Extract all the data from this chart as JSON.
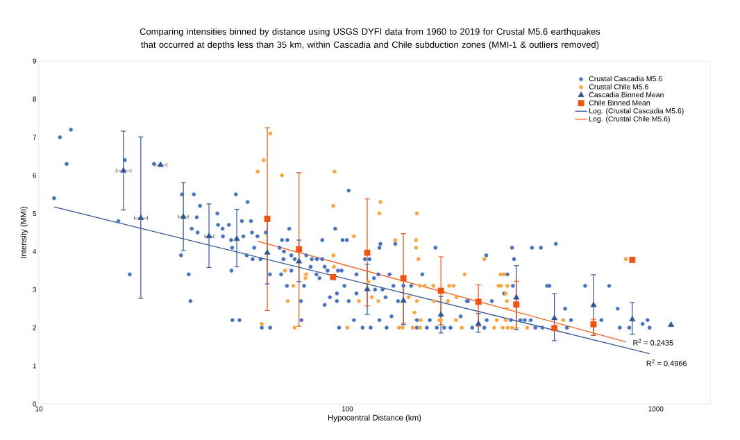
{
  "chart_data": {
    "type": "scatter",
    "title": "Comparing intensities binned by distance using USGS DYFI data from 1960 to 2019 for Crustal M5.6 earthquakes that occurred at depths less than 35 km, within Cascadia and Chile subduction zones (MMI-1 & outliers removed)",
    "xlabel": "Hypocentral Distance (km)",
    "ylabel": "Intensity (MMI)",
    "log": "x",
    "xlim": [
      10,
      1500
    ],
    "ylim": [
      0,
      9
    ],
    "xticks": [
      10,
      100,
      1000
    ],
    "yticks": [
      0,
      1,
      2,
      3,
      4,
      5,
      6,
      7,
      8,
      9
    ],
    "legend": "top right",
    "series": [
      {
        "name": "Crustal Cascadia M5.6",
        "color": "#4472c4",
        "marker": "circle",
        "x": [
          11.2,
          11.7,
          12.7,
          12.3,
          18.1,
          19.0,
          19.7,
          23.6,
          29.1,
          28.9,
          30.6,
          31.0,
          31.8,
          33.3,
          31.3,
          32.5,
          32.7,
          37.9,
          38.1,
          39.4,
          39.5,
          41.3,
          43.5,
          47.5,
          45.5,
          48.7,
          42.0,
          42.3,
          42.1,
          42.4,
          44.7,
          46.0,
          47.2,
          49.3,
          49.1,
          51.1,
          49.9,
          54.4,
          52.3,
          56.1,
          56.2,
          52.8,
          61.4,
          63.9,
          64.8,
          60.3,
          62.3,
          62.1,
          65.8,
          67.5,
          65.8,
          61.0,
          63.7,
          70.7,
          71.0,
          72.4,
          73.6,
          76.0,
          79.4,
          81.2,
          76.7,
          79.7,
          82.9,
          82.9,
          84.4,
          86.3,
          84.4,
          87.8,
          92.5,
          92.5,
          91.3,
          93.2,
          95.8,
          96.5,
          99.6,
          101,
          97.8,
          94.0,
          101,
          107,
          107,
          105,
          112,
          114,
          118,
          122,
          123,
          119,
          127,
          126,
          127,
          128,
          130,
          137,
          133,
          139,
          134,
          141,
          143,
          146,
          152,
          161,
          168,
          168,
          175,
          185,
          193,
          181,
          195,
          233,
          244,
          282,
          294,
          283,
          278,
          330,
          322,
          342,
          347,
          344,
          339,
          364,
          376,
          393,
          397,
          424,
          407,
          429,
          444,
          452,
          474,
          508,
          531,
          515,
          590,
          666,
          706,
          752,
          764,
          820,
          906,
          940,
          954,
          206,
          216,
          254,
          246
        ],
        "values": [
          5.4,
          7.0,
          7.2,
          6.3,
          4.8,
          6.4,
          3.4,
          6.3,
          5.5,
          3.9,
          3.4,
          2.7,
          5.5,
          5.2,
          4.6,
          4.9,
          4.5,
          5.0,
          4.7,
          4.6,
          4.4,
          4.7,
          5.5,
          5.3,
          4.8,
          4.8,
          4.3,
          4.1,
          3.5,
          2.2,
          2.2,
          4.4,
          3.9,
          3.8,
          4.5,
          4.4,
          4.1,
          4.5,
          3.8,
          3.4,
          2.0,
          2.0,
          4.3,
          4.3,
          4.6,
          4.1,
          4.0,
          3.8,
          3.9,
          3.8,
          3.5,
          3.4,
          3.1,
          2.7,
          2.2,
          3.1,
          3.9,
          3.6,
          3.4,
          3.3,
          3.8,
          3.8,
          3.8,
          4.3,
          3.6,
          3.5,
          2.6,
          2.8,
          2.7,
          2.9,
          4.6,
          3.5,
          3.5,
          4.3,
          4.3,
          5.6,
          3.1,
          2.0,
          2.7,
          3.4,
          2.9,
          2.2,
          2.0,
          3.8,
          3.8,
          3.3,
          3.0,
          2.0,
          2.2,
          3.4,
          4.1,
          4.2,
          3.0,
          3.4,
          2.8,
          2.3,
          2.0,
          3.1,
          4.2,
          2.7,
          3.1,
          3.1,
          2.2,
          2.0,
          3.4,
          2.2,
          4.1,
          2.0,
          2.0,
          2.3,
          2.7,
          3.9,
          2.7,
          2.2,
          2.0,
          3.4,
          2.9,
          4.1,
          3.8,
          3.1,
          2.2,
          2.2,
          2.2,
          2.2,
          4.1,
          4.1,
          2.0,
          2.0,
          3.1,
          3.1,
          4.2,
          2.5,
          2.2,
          2.0,
          3.1,
          2.2,
          3.1,
          2.5,
          2.0,
          2.0,
          2.1,
          2.2,
          2.0,
          2.0,
          2.0,
          2.0,
          2.7
        ]
      },
      {
        "name": "Crustal Chile M5.6",
        "color": "#ffa53a",
        "marker": "circle",
        "x": [
          56.3,
          53.5,
          51.2,
          52.8,
          61.4,
          62.8,
          66.8,
          64.1,
          67.4,
          73.5,
          73.2,
          90.9,
          90.0,
          90.2,
          90.5,
          100,
          105,
          109,
          117,
          120,
          128,
          127,
          126,
          143,
          168,
          167,
          167,
          170,
          165,
          168,
          158,
          147,
          151,
          163,
          172,
          173,
          172,
          178,
          190,
          191,
          199,
          212,
          214,
          221,
          225,
          226,
          235,
          240,
          278,
          305,
          299,
          314,
          322,
          309,
          315,
          330,
          326,
          329,
          329,
          326,
          331,
          342,
          319,
          383,
          501,
          799,
          201
        ],
        "values": [
          7.1,
          6.4,
          6.1,
          2.1,
          6.0,
          3.5,
          3.1,
          2.7,
          2.0,
          3.4,
          3.3,
          6.1,
          5.2,
          3.9,
          3.6,
          2.0,
          4.4,
          2.7,
          3.2,
          2.8,
          5.3,
          5.0,
          2.7,
          4.3,
          5.0,
          4.3,
          4.1,
          3.8,
          2.4,
          2.7,
          2.8,
          2.0,
          2.0,
          2.0,
          2.0,
          2.2,
          3.1,
          3.1,
          3.1,
          2.7,
          2.2,
          2.7,
          3.1,
          3.1,
          2.2,
          2.8,
          2.0,
          3.4,
          3.8,
          2.2,
          2.0,
          3.4,
          3.4,
          3.1,
          3.1,
          3.1,
          2.9,
          2.7,
          2.5,
          2.2,
          2.0,
          2.0,
          2.0,
          2.0,
          2.2,
          3.8,
          2.2
        ]
      },
      {
        "name": "Cascadia Binned Mean",
        "color": "#2f5597",
        "marker": "triangle",
        "x": [
          18.8,
          21.4,
          24.8,
          29.4,
          35.6,
          43.8,
          55.0,
          69.7,
          116,
          152,
          201,
          266,
          353,
          469,
          628,
          839,
          1120
        ],
        "values": [
          6.12,
          4.88,
          6.27,
          4.91,
          4.4,
          4.33,
          3.97,
          3.74,
          3.01,
          2.71,
          2.34,
          2.1,
          2.79,
          2.25,
          2.59,
          2.22,
          2.07
        ],
        "errors": [
          [
            5.09,
            7.16
          ],
          [
            2.77,
            7.01
          ],
          null,
          [
            4.03,
            5.81
          ],
          [
            3.58,
            5.25
          ],
          [
            3.6,
            5.11
          ],
          [
            3.15,
            4.79
          ],
          [
            3.21,
            4.3
          ],
          [
            2.35,
            3.67
          ],
          [
            2.08,
            3.34
          ],
          [
            1.86,
            2.82
          ],
          [
            1.88,
            2.37
          ],
          [
            1.95,
            3.63
          ],
          [
            1.66,
            2.89
          ],
          [
            1.8,
            3.39
          ],
          [
            1.83,
            2.66
          ],
          null
        ],
        "xerrors": [
          [
            17.8,
            19.9
          ],
          [
            20.4,
            22.5
          ],
          [
            23.8,
            26.0
          ],
          [
            28.4,
            30.5
          ],
          [
            34.5,
            36.9
          ],
          null,
          null,
          null,
          null,
          null,
          null,
          null,
          null,
          null,
          null,
          null,
          null
        ]
      },
      {
        "name": "Chile Binned Mean",
        "color": "#f4520c",
        "marker": "square",
        "x": [
          55.0,
          69.7,
          89.9,
          116,
          152,
          201,
          266,
          353,
          469,
          628,
          839
        ],
        "values": [
          4.86,
          4.06,
          3.33,
          3.97,
          3.3,
          2.97,
          2.68,
          2.61,
          1.99,
          2.09,
          3.78
        ],
        "errors": [
          [
            2.45,
            7.25
          ],
          [
            2.04,
            6.07
          ],
          null,
          [
            2.57,
            5.38
          ],
          [
            2.12,
            4.47
          ],
          [
            2.08,
            3.86
          ],
          [
            2.04,
            3.13
          ],
          [
            1.99,
            3.22
          ],
          null,
          [
            1.8,
            2.22
          ],
          null
        ]
      },
      {
        "name": "Log. (Crustal Cascadia M5.6)",
        "type": "line",
        "color": "#2f5597",
        "x": [
          11.2,
          954
        ],
        "values": [
          5.17,
          1.32
        ]
      },
      {
        "name": "Log. (Crustal Chile M5.6)",
        "type": "line",
        "color": "#ff5b1a",
        "x": [
          51.2,
          800
        ],
        "values": [
          4.27,
          1.63
        ]
      }
    ],
    "annotations": [
      "R$^{2}$ = 0.2435",
      "R$^{2}$ = 0.4966"
    ]
  }
}
